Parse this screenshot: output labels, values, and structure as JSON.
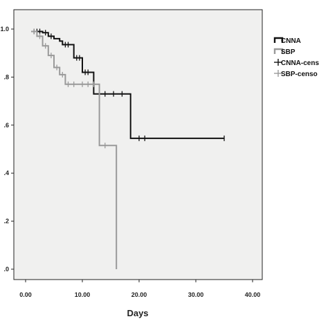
{
  "chart_data": {
    "type": "line",
    "xlabel": "Days",
    "ylabel": "",
    "xlim": [
      0,
      40
    ],
    "ylim": [
      0,
      1.0
    ],
    "x_ticks": [
      "0.00",
      "10.00",
      "20.00",
      "30.00",
      "40.00"
    ],
    "y_ticks": [
      ".0",
      ".2",
      ".4",
      ".6",
      ".8",
      "1.0"
    ],
    "y_tick_values": [
      0,
      0.2,
      0.4,
      0.6,
      0.8,
      1.0
    ],
    "grid": false,
    "legend_position": "right",
    "legend": [
      "CNNA",
      "SBP",
      "CNNA-cens",
      "SBP-censo"
    ],
    "series": [
      {
        "name": "CNNA",
        "color": "#111111",
        "steps": [
          [
            1,
            0.99
          ],
          [
            3,
            0.985
          ],
          [
            4,
            0.97
          ],
          [
            5,
            0.96
          ],
          [
            6,
            0.95
          ],
          [
            6.5,
            0.935
          ],
          [
            8.5,
            0.88
          ],
          [
            10,
            0.82
          ],
          [
            12,
            0.73
          ],
          [
            18.5,
            0.545
          ],
          [
            35,
            0.545
          ]
        ],
        "censored": [
          [
            1.5,
            0.99
          ],
          [
            2,
            0.99
          ],
          [
            2.5,
            0.99
          ],
          [
            3.5,
            0.985
          ],
          [
            4.5,
            0.97
          ],
          [
            7,
            0.935
          ],
          [
            7.5,
            0.935
          ],
          [
            9,
            0.88
          ],
          [
            9.5,
            0.88
          ],
          [
            10.5,
            0.82
          ],
          [
            11,
            0.82
          ],
          [
            13,
            0.73
          ],
          [
            14,
            0.73
          ],
          [
            15.5,
            0.73
          ],
          [
            17,
            0.73
          ],
          [
            20,
            0.545
          ],
          [
            21,
            0.545
          ],
          [
            35,
            0.545
          ]
        ]
      },
      {
        "name": "SBP",
        "color": "#999999",
        "steps": [
          [
            1,
            0.99
          ],
          [
            2,
            0.97
          ],
          [
            3,
            0.93
          ],
          [
            4,
            0.89
          ],
          [
            5,
            0.84
          ],
          [
            6,
            0.81
          ],
          [
            7,
            0.77
          ],
          [
            13,
            0.515
          ],
          [
            16,
            0.0
          ]
        ],
        "censored": [
          [
            1.5,
            0.99
          ],
          [
            2.5,
            0.97
          ],
          [
            3.5,
            0.93
          ],
          [
            4.5,
            0.89
          ],
          [
            5.5,
            0.84
          ],
          [
            6.5,
            0.81
          ],
          [
            7.5,
            0.77
          ],
          [
            8.5,
            0.77
          ],
          [
            10,
            0.77
          ],
          [
            11,
            0.77
          ],
          [
            12,
            0.77
          ],
          [
            14,
            0.515
          ]
        ]
      }
    ]
  }
}
